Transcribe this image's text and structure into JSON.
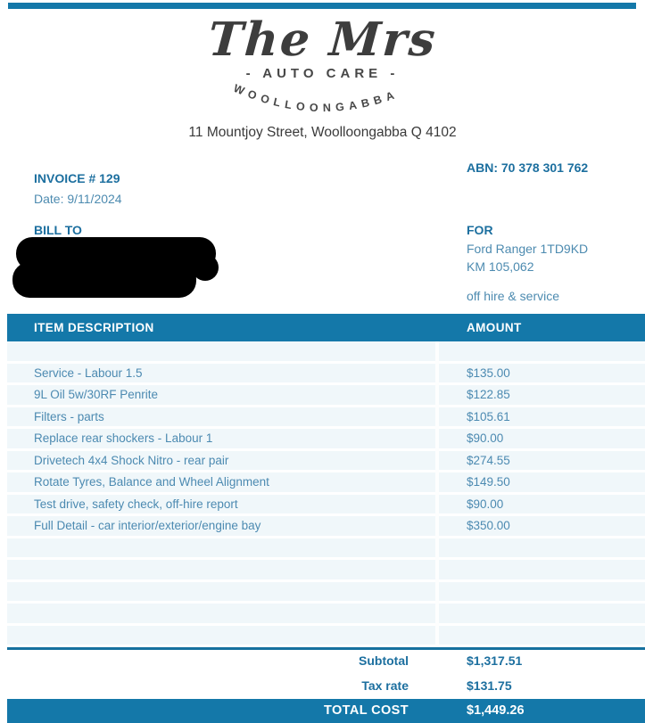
{
  "colors": {
    "accent": "#1478a9",
    "heading_blue": "#1c6f9f",
    "body_blue": "#4d8bb0"
  },
  "logo": {
    "brand": "The Mrs",
    "tagline": "- AUTO CARE -",
    "arc_text": "WOOLLOONGABBA"
  },
  "address": "11 Mountjoy Street, Woolloongabba Q 4102",
  "invoice": {
    "number": "INVOICE # 129",
    "date": "Date: 9/11/2024",
    "abn": "ABN: 70 378 301 762"
  },
  "bill_to": {
    "label": "BILL TO"
  },
  "vehicle": {
    "label": "FOR",
    "line1": "Ford Ranger 1TD9KD",
    "line2": "KM 105,062",
    "note": "off hire & service"
  },
  "table": {
    "headers": {
      "description": "ITEM DESCRIPTION",
      "amount": "AMOUNT"
    },
    "rows": [
      {
        "desc": "",
        "amount": ""
      },
      {
        "desc": "Service - Labour 1.5",
        "amount": "$135.00"
      },
      {
        "desc": "9L Oil 5w/30RF Penrite",
        "amount": "$122.85"
      },
      {
        "desc": "Filters - parts",
        "amount": "$105.61"
      },
      {
        "desc": "Replace rear shockers - Labour 1",
        "amount": "$90.00"
      },
      {
        "desc": "Drivetech 4x4 Shock Nitro - rear pair",
        "amount": "$274.55"
      },
      {
        "desc": "Rotate Tyres, Balance and Wheel Alignment",
        "amount": "$149.50"
      },
      {
        "desc": "Test drive, safety check, off-hire report",
        "amount": "$90.00"
      },
      {
        "desc": "Full Detail - car interior/exterior/engine bay",
        "amount": "$350.00"
      },
      {
        "desc": "",
        "amount": ""
      },
      {
        "desc": "",
        "amount": ""
      },
      {
        "desc": "",
        "amount": ""
      },
      {
        "desc": "",
        "amount": ""
      },
      {
        "desc": "",
        "amount": ""
      }
    ]
  },
  "totals": {
    "subtotal_label": "Subtotal",
    "subtotal_value": "$1,317.51",
    "tax_label": "Tax rate",
    "tax_value": "$131.75",
    "total_label": "TOTAL COST",
    "total_value": "$1,449.26"
  }
}
